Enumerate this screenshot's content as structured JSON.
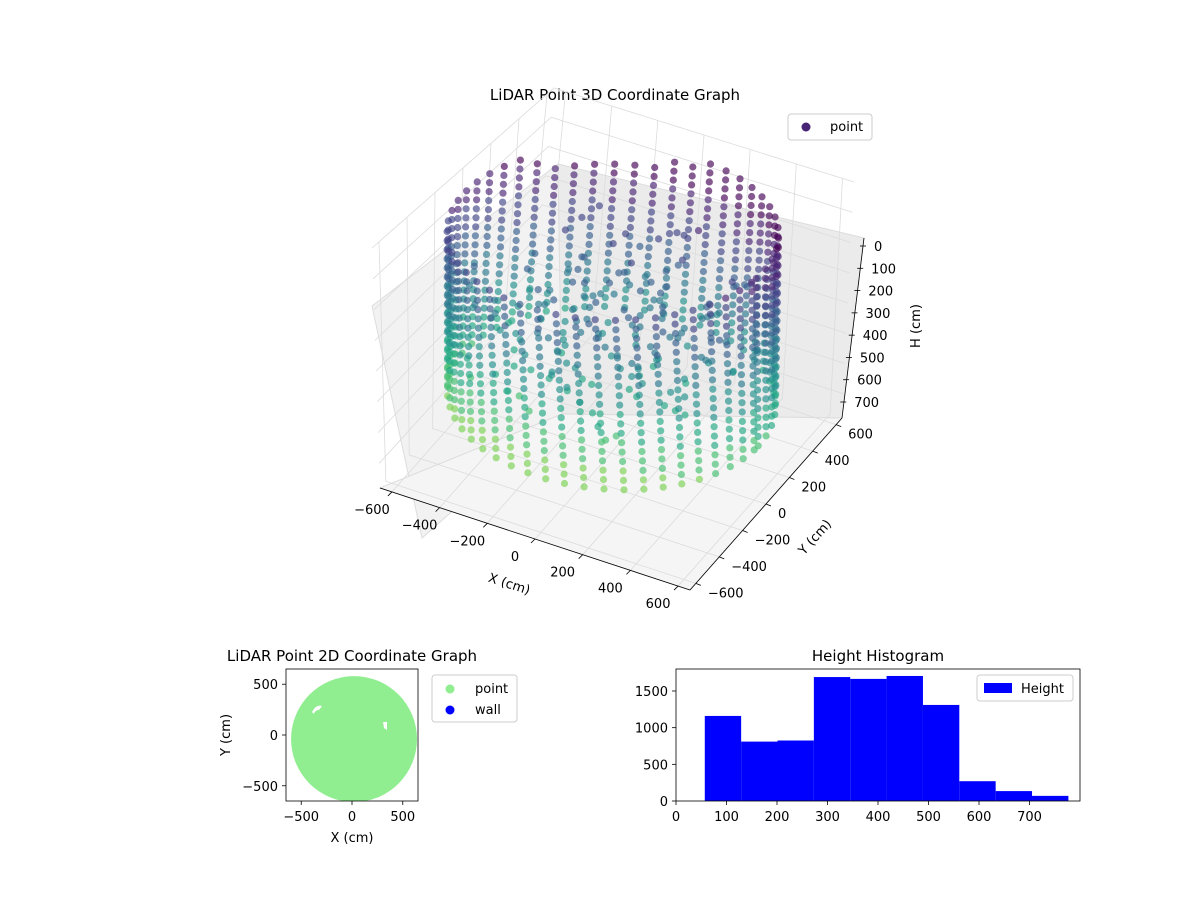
{
  "chart_data": [
    {
      "type": "scatter3d",
      "title": "LiDAR Point 3D Coordinate Graph",
      "xlabel": "X (cm)",
      "ylabel": "Y (cm)",
      "zlabel": "H (cm)",
      "x_ticks": [
        "−600",
        "−400",
        "−200",
        "0",
        "200",
        "400",
        "600"
      ],
      "y_ticks": [
        "−600",
        "−400",
        "−200",
        "0",
        "200",
        "400",
        "600"
      ],
      "z_ticks": [
        "0",
        "100",
        "200",
        "300",
        "400",
        "500",
        "600",
        "700"
      ],
      "xlim": [
        -650,
        650
      ],
      "ylim": [
        -650,
        650
      ],
      "zlim": [
        780,
        0
      ],
      "z_inverted": true,
      "colormap": "viridis",
      "legend": {
        "position": "top-right",
        "entries": [
          {
            "label": "point",
            "color": "#482475"
          }
        ]
      },
      "structure": "cylindrical wall of points, radius about 620 cm, heights 60 to 780 cm, with interior scattered points",
      "grid": true
    },
    {
      "type": "scatter",
      "title": "LiDAR Point 2D Coordinate Graph",
      "xlabel": "X (cm)",
      "ylabel": "Y (cm)",
      "x_ticks": [
        "−500",
        "0",
        "500"
      ],
      "y_ticks": [
        "500",
        "0",
        "−500"
      ],
      "xlim": [
        -650,
        650
      ],
      "ylim": [
        -650,
        650
      ],
      "grid": false,
      "legend": {
        "position": "outside-right",
        "entries": [
          {
            "label": "point",
            "color": "#90ee90"
          },
          {
            "label": "wall",
            "color": "#0000ff"
          }
        ]
      },
      "structure": "filled disc of points, radius about 620 cm"
    },
    {
      "type": "bar",
      "title": "Height Histogram",
      "x_ticks": [
        "0",
        "100",
        "200",
        "300",
        "400",
        "500",
        "600",
        "700"
      ],
      "y_ticks": [
        "0",
        "500",
        "1000",
        "1500"
      ],
      "xlim": [
        0,
        800
      ],
      "ylim": [
        0,
        1800
      ],
      "grid": false,
      "series": [
        {
          "name": "Height",
          "color": "#0000ff",
          "bins": [
            {
              "start": 57,
              "end": 129,
              "count": 1160
            },
            {
              "start": 129,
              "end": 201,
              "count": 810
            },
            {
              "start": 201,
              "end": 273,
              "count": 825
            },
            {
              "start": 273,
              "end": 345,
              "count": 1690
            },
            {
              "start": 345,
              "end": 417,
              "count": 1665
            },
            {
              "start": 417,
              "end": 489,
              "count": 1705
            },
            {
              "start": 489,
              "end": 561,
              "count": 1310
            },
            {
              "start": 561,
              "end": 633,
              "count": 270
            },
            {
              "start": 633,
              "end": 705,
              "count": 135
            },
            {
              "start": 705,
              "end": 777,
              "count": 70
            }
          ]
        }
      ],
      "legend": {
        "position": "top-right",
        "entries": [
          {
            "label": "Height",
            "color": "#0000ff"
          }
        ]
      }
    }
  ]
}
